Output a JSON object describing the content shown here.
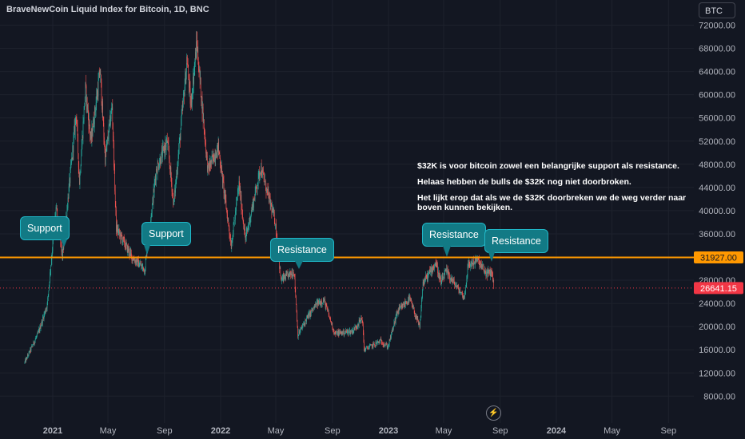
{
  "header": {
    "title": "BraveNewCoin Liquid Index for Bitcoin, 1D, BNC",
    "currency": "BTC"
  },
  "price_tags": {
    "resistance_level": "31927.00",
    "last_price": "26641.15"
  },
  "annotation": {
    "line1": "$32K is voor bitcoin zowel een belangrijke support als resistance.",
    "line2": "Helaas hebben de bulls de $32K nog niet doorbroken.",
    "line3": "Het lijkt erop dat als we de $32K doorbreken we de weg verder naar boven kunnen bekijken."
  },
  "callouts": {
    "support_1": "Support",
    "support_2": "Support",
    "resistance_1": "Resistance",
    "resistance_2": "Resistance",
    "resistance_3": "Resistance"
  },
  "logo": "tradingview-logo-icon",
  "colors": {
    "background": "#131722",
    "up": "#26a69a",
    "down": "#ef5350",
    "level_line": "#ff9800",
    "callout": "#127a85",
    "last_price": "#f23645"
  },
  "chart_data": {
    "type": "candlestick",
    "x_tick_labels": [
      "2021",
      "May",
      "Sep",
      "2022",
      "May",
      "Sep",
      "2023",
      "May",
      "Sep",
      "2024",
      "May",
      "Sep"
    ],
    "y_tick_labels": [
      "72000.00",
      "68000.00",
      "64000.00",
      "60000.00",
      "56000.00",
      "52000.00",
      "48000.00",
      "44000.00",
      "40000.00",
      "36000.00",
      "28000.00",
      "24000.00",
      "20000.00",
      "16000.00",
      "12000.00",
      "8000.00"
    ],
    "ylim": [
      4000,
      74000
    ],
    "horizontal_line": 31927.0,
    "last_price": 26641.15,
    "grid": true,
    "price_path": [
      [
        "2020-11-01",
        13800
      ],
      [
        "2020-12-01",
        19000
      ],
      [
        "2020-12-20",
        23800
      ],
      [
        "2021-01-08",
        40500
      ],
      [
        "2021-01-22",
        32000
      ],
      [
        "2021-02-21",
        57000
      ],
      [
        "2021-02-28",
        45000
      ],
      [
        "2021-03-13",
        61000
      ],
      [
        "2021-03-25",
        52000
      ],
      [
        "2021-04-14",
        64000
      ],
      [
        "2021-04-25",
        49000
      ],
      [
        "2021-05-10",
        58000
      ],
      [
        "2021-05-19",
        37000
      ],
      [
        "2021-06-22",
        32000
      ],
      [
        "2021-07-20",
        29800
      ],
      [
        "2021-08-14",
        47000
      ],
      [
        "2021-09-07",
        52000
      ],
      [
        "2021-09-21",
        41000
      ],
      [
        "2021-10-20",
        66000
      ],
      [
        "2021-10-28",
        58000
      ],
      [
        "2021-11-10",
        69000
      ],
      [
        "2021-12-04",
        47000
      ],
      [
        "2021-12-27",
        51000
      ],
      [
        "2022-01-24",
        34000
      ],
      [
        "2022-02-10",
        44500
      ],
      [
        "2022-02-24",
        35000
      ],
      [
        "2022-03-29",
        47500
      ],
      [
        "2022-04-30",
        38000
      ],
      [
        "2022-05-12",
        28000
      ],
      [
        "2022-06-10",
        29500
      ],
      [
        "2022-06-18",
        18500
      ],
      [
        "2022-07-08",
        21500
      ],
      [
        "2022-07-30",
        24000
      ],
      [
        "2022-08-14",
        24500
      ],
      [
        "2022-09-06",
        18800
      ],
      [
        "2022-10-15",
        19200
      ],
      [
        "2022-11-05",
        21500
      ],
      [
        "2022-11-09",
        16000
      ],
      [
        "2022-12-15",
        17500
      ],
      [
        "2022-12-31",
        16500
      ],
      [
        "2023-01-20",
        22500
      ],
      [
        "2023-02-16",
        24800
      ],
      [
        "2023-03-10",
        19800
      ],
      [
        "2023-03-17",
        27500
      ],
      [
        "2023-04-14",
        31000
      ],
      [
        "2023-04-25",
        27500
      ],
      [
        "2023-05-06",
        29500
      ],
      [
        "2023-06-15",
        25000
      ],
      [
        "2023-06-23",
        30500
      ],
      [
        "2023-07-13",
        31500
      ],
      [
        "2023-08-01",
        29200
      ],
      [
        "2023-08-15",
        29300
      ],
      [
        "2023-08-18",
        26641
      ]
    ]
  }
}
